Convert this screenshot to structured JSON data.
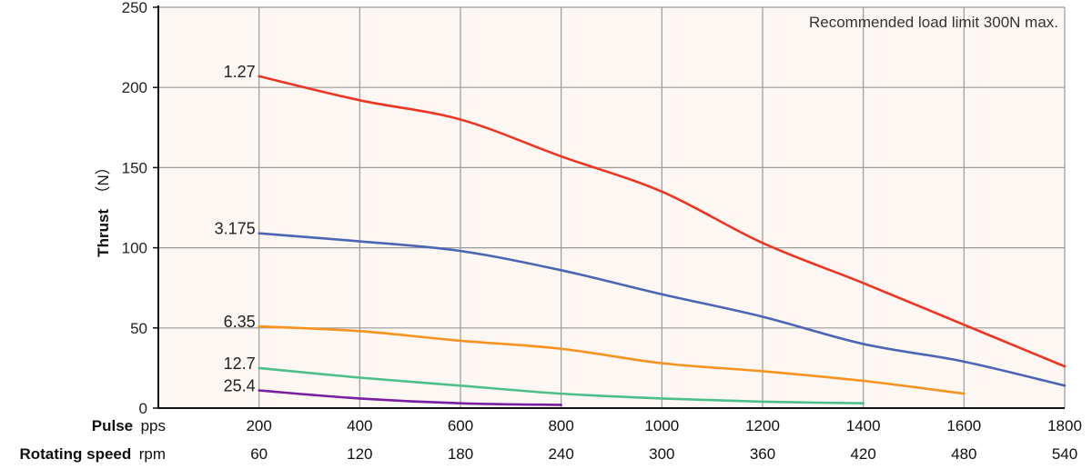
{
  "chart_data": {
    "type": "line",
    "note": "Recommended load limit 300N max.",
    "ylabel": {
      "name": "Thrust",
      "unit": "（N）"
    },
    "x_axes": [
      {
        "name": "Pulse",
        "unit": "pps",
        "ticks": [
          "200",
          "400",
          "600",
          "800",
          "1000",
          "1200",
          "1400",
          "1600",
          "1800"
        ]
      },
      {
        "name": "Rotating speed",
        "unit": "rpm",
        "ticks": [
          "60",
          "120",
          "180",
          "240",
          "300",
          "360",
          "420",
          "480",
          "540"
        ]
      }
    ],
    "xlim": [
      0,
      1800
    ],
    "ylim": [
      0,
      250
    ],
    "y_ticks": [
      0,
      50,
      100,
      150,
      200,
      250
    ],
    "grid": true,
    "series": [
      {
        "name": "1.27",
        "color": "#ee3524",
        "points": [
          [
            200,
            207
          ],
          [
            400,
            192
          ],
          [
            600,
            180
          ],
          [
            800,
            157
          ],
          [
            1000,
            135
          ],
          [
            1200,
            103
          ],
          [
            1400,
            78
          ],
          [
            1600,
            52
          ],
          [
            1800,
            26
          ]
        ]
      },
      {
        "name": "3.175",
        "color": "#4a66b5",
        "points": [
          [
            200,
            109
          ],
          [
            400,
            104
          ],
          [
            600,
            98
          ],
          [
            800,
            86
          ],
          [
            1000,
            71
          ],
          [
            1200,
            57
          ],
          [
            1400,
            40
          ],
          [
            1600,
            29
          ],
          [
            1800,
            14
          ]
        ]
      },
      {
        "name": "6.35",
        "color": "#f7931e",
        "points": [
          [
            200,
            51
          ],
          [
            400,
            48
          ],
          [
            600,
            42
          ],
          [
            800,
            37
          ],
          [
            1000,
            28
          ],
          [
            1200,
            23
          ],
          [
            1400,
            17
          ],
          [
            1600,
            9
          ]
        ]
      },
      {
        "name": "12.7",
        "color": "#4dc08a",
        "points": [
          [
            200,
            25
          ],
          [
            400,
            19
          ],
          [
            600,
            14
          ],
          [
            800,
            9
          ],
          [
            1000,
            6
          ],
          [
            1200,
            4
          ],
          [
            1400,
            3
          ]
        ]
      },
      {
        "name": "25.4",
        "color": "#7b1fa2",
        "points": [
          [
            200,
            11
          ],
          [
            400,
            6
          ],
          [
            600,
            3
          ],
          [
            800,
            2
          ]
        ]
      }
    ]
  }
}
